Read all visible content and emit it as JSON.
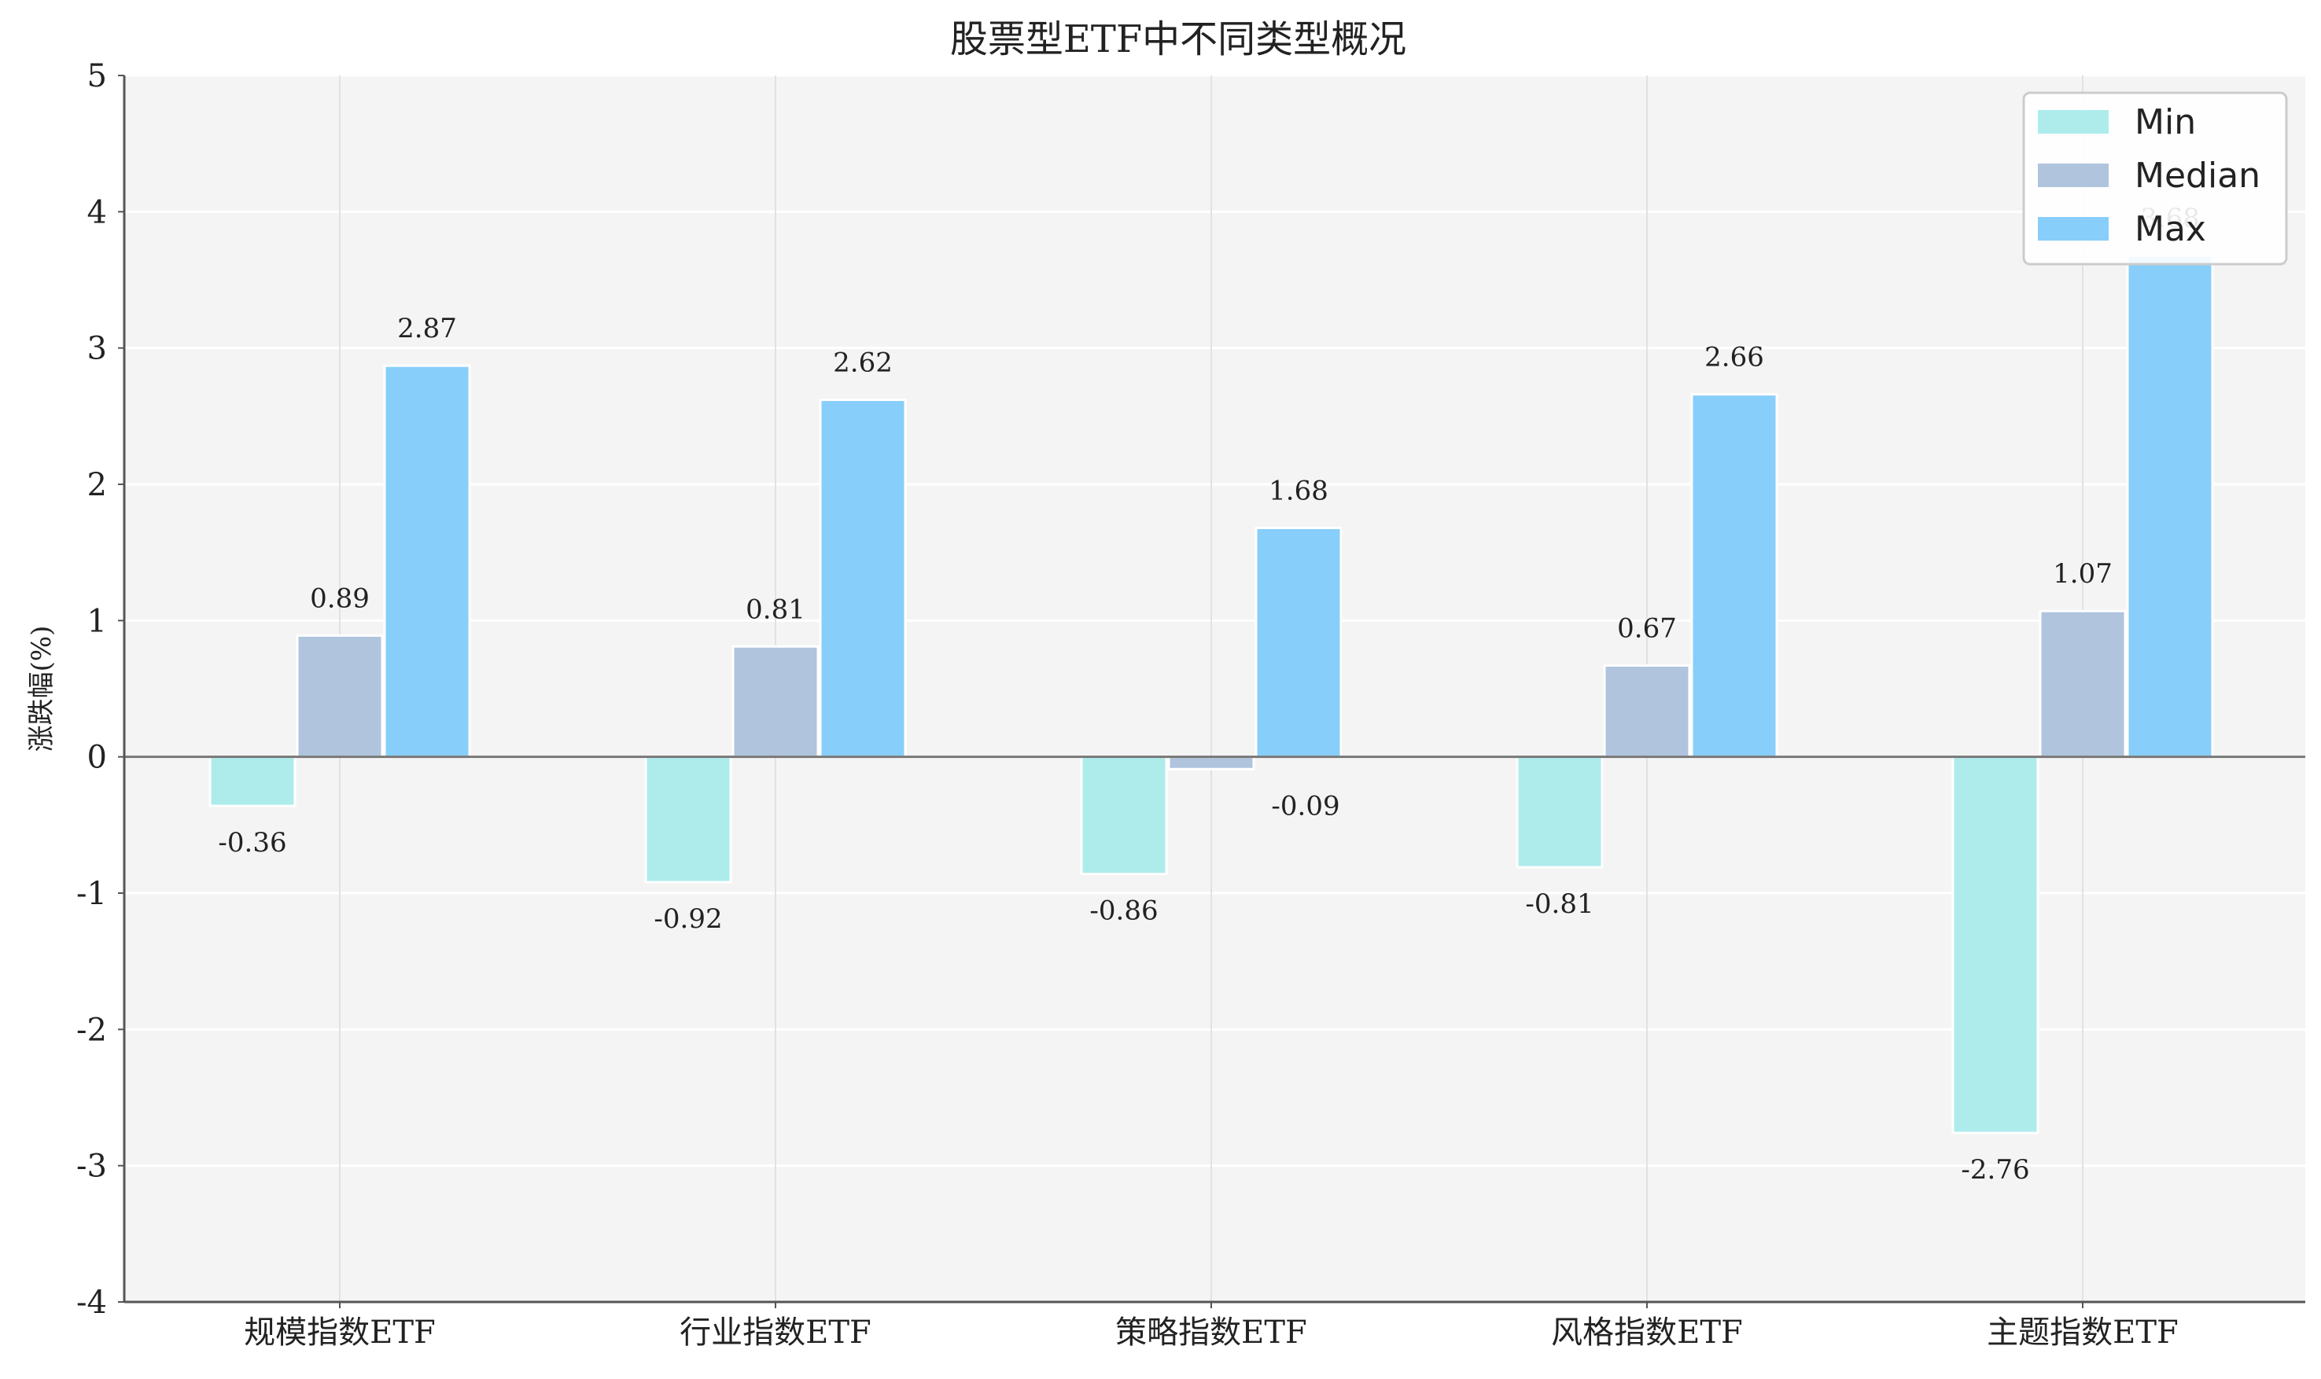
{
  "chart_data": {
    "type": "bar",
    "title": "股票型ETF中不同类型概况",
    "xlabel": "",
    "ylabel": "涨跌幅(%)",
    "ylim": [
      -4,
      5
    ],
    "yticks": [
      "-4",
      "-3",
      "-2",
      "-1",
      "0",
      "1",
      "2",
      "3",
      "4",
      "5"
    ],
    "grid": true,
    "legend_position": "top-right",
    "categories": [
      "规模指数ETF",
      "行业指数ETF",
      "策略指数ETF",
      "风格指数ETF",
      "主题指数ETF"
    ],
    "series": [
      {
        "name": "Min",
        "color": "#aeecec",
        "values": [
          -0.36,
          -0.92,
          -0.86,
          -0.81,
          -2.76
        ],
        "labels": [
          "-0.36",
          "-0.92",
          "-0.86",
          "-0.81",
          "-2.76"
        ]
      },
      {
        "name": "Median",
        "color": "#b0c4de",
        "values": [
          0.89,
          0.81,
          -0.09,
          0.67,
          1.07
        ],
        "labels": [
          "0.89",
          "0.81",
          "-0.09",
          "0.67",
          "1.07"
        ]
      },
      {
        "name": "Max",
        "color": "#87cefa",
        "values": [
          2.87,
          2.62,
          1.68,
          2.66,
          3.68
        ],
        "labels": [
          "2.87",
          "2.62",
          "1.68",
          "2.66",
          "3.68"
        ]
      }
    ]
  }
}
